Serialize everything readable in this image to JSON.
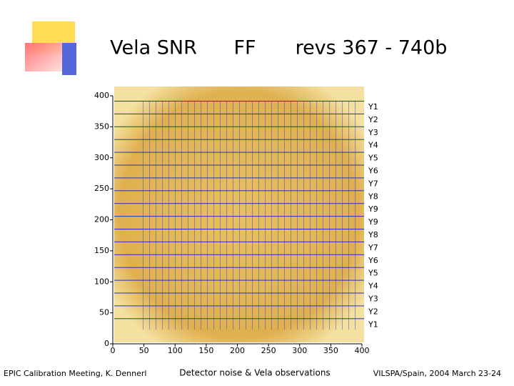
{
  "title": [
    "Vela SNR",
    "FF",
    "revs 367 - 740b"
  ],
  "figure": {
    "xticks": [
      0,
      50,
      100,
      150,
      200,
      250,
      300,
      350,
      400
    ],
    "yticks": [
      0,
      50,
      100,
      150,
      200,
      250,
      300,
      350,
      400
    ],
    "xlim": [
      0,
      400
    ],
    "ylim": [
      0,
      400
    ],
    "row_labels": [
      "Y1",
      "Y2",
      "Y3",
      "Y4",
      "Y5",
      "Y6",
      "Y7",
      "Y8",
      "Y9",
      "Y9",
      "Y8",
      "Y7",
      "Y6",
      "Y5",
      "Y4",
      "Y3",
      "Y2",
      "Y1"
    ]
  },
  "footer": {
    "left": "EPIC Calibration Meeting, K. Dennerl",
    "center": "Detector noise & Vela observations",
    "right": "VILSPA/Spain, 2004 March 23-24"
  }
}
